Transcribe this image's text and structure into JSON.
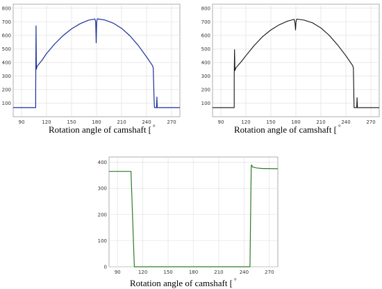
{
  "chart_data": [
    {
      "type": "line",
      "xlabel": "Rotation angle of camshaft [",
      "xunit": "°",
      "xlim": [
        80,
        280
      ],
      "ylim": [
        0,
        830
      ],
      "xticks": [
        90,
        120,
        150,
        180,
        210,
        240,
        270
      ],
      "yticks": [
        100,
        200,
        300,
        400,
        500,
        600,
        700,
        800
      ],
      "grid": true,
      "color": "#1a2f9e",
      "series": [
        {
          "values": [
            [
              80,
              67
            ],
            [
              107,
              67
            ],
            [
              107,
              180
            ],
            [
              107.4,
              670
            ],
            [
              107.8,
              350
            ],
            [
              108.5,
              370
            ],
            [
              115,
              420
            ],
            [
              120,
              466
            ],
            [
              130,
              538
            ],
            [
              140,
              599
            ],
            [
              150,
              648
            ],
            [
              160,
              685
            ],
            [
              170,
              711
            ],
            [
              178,
              721
            ],
            [
              179,
              700
            ],
            [
              179.6,
              545
            ],
            [
              180.2,
              700
            ],
            [
              181,
              722
            ],
            [
              190,
              713
            ],
            [
              200,
              690
            ],
            [
              210,
              652
            ],
            [
              220,
              597
            ],
            [
              230,
              526
            ],
            [
              240,
              441
            ],
            [
              247,
              378
            ],
            [
              248,
              360
            ],
            [
              249,
              140
            ],
            [
              249.5,
              67
            ],
            [
              252,
              67
            ],
            [
              252.4,
              145
            ],
            [
              252.8,
              67
            ],
            [
              280,
              67
            ]
          ]
        }
      ]
    },
    {
      "type": "line",
      "xlabel": "Rotation angle of camshaft [",
      "xunit": "°",
      "xlim": [
        80,
        280
      ],
      "ylim": [
        0,
        830
      ],
      "xticks": [
        90,
        120,
        150,
        180,
        210,
        240,
        270
      ],
      "yticks": [
        100,
        200,
        300,
        400,
        500,
        600,
        700,
        800
      ],
      "grid": true,
      "color": "#111111",
      "series": [
        {
          "values": [
            [
              80,
              67
            ],
            [
              106,
              67
            ],
            [
              106,
              300
            ],
            [
              106.4,
              495
            ],
            [
              106.8,
              340
            ],
            [
              108,
              360
            ],
            [
              115,
              410
            ],
            [
              120,
              450
            ],
            [
              130,
              525
            ],
            [
              140,
              590
            ],
            [
              150,
              640
            ],
            [
              160,
              678
            ],
            [
              170,
              705
            ],
            [
              178,
              718
            ],
            [
              179,
              690
            ],
            [
              179.6,
              640
            ],
            [
              180.2,
              700
            ],
            [
              181,
              720
            ],
            [
              190,
              712
            ],
            [
              200,
              692
            ],
            [
              210,
              655
            ],
            [
              220,
              600
            ],
            [
              230,
              530
            ],
            [
              240,
              450
            ],
            [
              248,
              378
            ],
            [
              249,
              360
            ],
            [
              249.8,
              67
            ],
            [
              253,
              67
            ],
            [
              253.4,
              140
            ],
            [
              253.8,
              67
            ],
            [
              280,
              67
            ]
          ]
        }
      ]
    },
    {
      "type": "line",
      "xlabel": "Rotation angle of camshaft [",
      "xunit": "°",
      "xlim": [
        80,
        280
      ],
      "ylim": [
        0,
        420
      ],
      "xticks": [
        90,
        120,
        150,
        180,
        210,
        240,
        270
      ],
      "yticks": [
        0,
        100,
        200,
        300,
        400
      ],
      "grid": true,
      "color": "#2a7a2a",
      "series": [
        {
          "values": [
            [
              80,
              365
            ],
            [
              106,
              365
            ],
            [
              110,
              0
            ],
            [
              247,
              0
            ],
            [
              248.5,
              385
            ],
            [
              249,
              390
            ],
            [
              250,
              382
            ],
            [
              255,
              378
            ],
            [
              262,
              376
            ],
            [
              280,
              375
            ]
          ]
        }
      ]
    }
  ]
}
